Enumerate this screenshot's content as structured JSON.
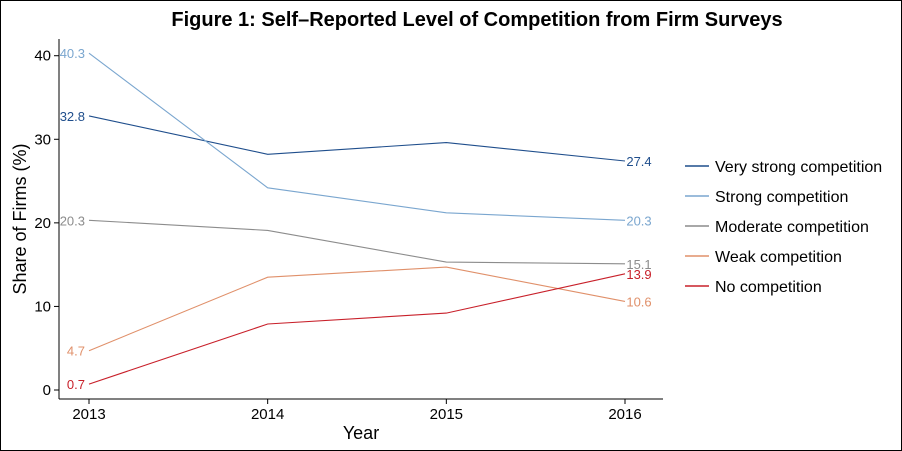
{
  "chart_data": {
    "type": "line",
    "title": "Figure 1: Self–Reported Level of Competition from Firm Surveys",
    "xlabel": "Year",
    "ylabel": "Share of Firms (%)",
    "x": [
      2013,
      2014,
      2015,
      2016
    ],
    "x_tick_labels": [
      "2013",
      "2014",
      "2015",
      "2016"
    ],
    "ylim": [
      0,
      42
    ],
    "y_ticks": [
      0,
      10,
      20,
      30,
      40
    ],
    "y_tick_labels": [
      "0",
      "10",
      "20",
      "30",
      "40"
    ],
    "grid": false,
    "legend_position": "right",
    "series": [
      {
        "name": "Very strong competition",
        "color": "#1f4e8c",
        "values": [
          32.8,
          28.2,
          29.6,
          27.4
        ],
        "labels": [
          {
            "index": 0,
            "text": "32.8"
          },
          {
            "index": 3,
            "text": "27.4"
          }
        ]
      },
      {
        "name": "Strong competition",
        "color": "#7aa6cf",
        "values": [
          40.3,
          24.2,
          21.2,
          20.3
        ],
        "labels": [
          {
            "index": 0,
            "text": "40.3"
          },
          {
            "index": 3,
            "text": "20.3"
          }
        ]
      },
      {
        "name": "Moderate competition",
        "color": "#8c8c8c",
        "values": [
          20.3,
          19.1,
          15.3,
          15.1
        ],
        "labels": [
          {
            "index": 0,
            "text": "20.3"
          },
          {
            "index": 3,
            "text": "15.1"
          }
        ]
      },
      {
        "name": "Weak competition",
        "color": "#e0906a",
        "values": [
          4.7,
          13.5,
          14.7,
          10.6
        ],
        "labels": [
          {
            "index": 0,
            "text": "4.7"
          },
          {
            "index": 3,
            "text": "10.6"
          }
        ]
      },
      {
        "name": "No competition",
        "color": "#c8202a",
        "values": [
          0.7,
          7.9,
          9.2,
          13.9
        ],
        "labels": [
          {
            "index": 0,
            "text": "0.7"
          },
          {
            "index": 3,
            "text": "13.9"
          }
        ]
      }
    ]
  }
}
